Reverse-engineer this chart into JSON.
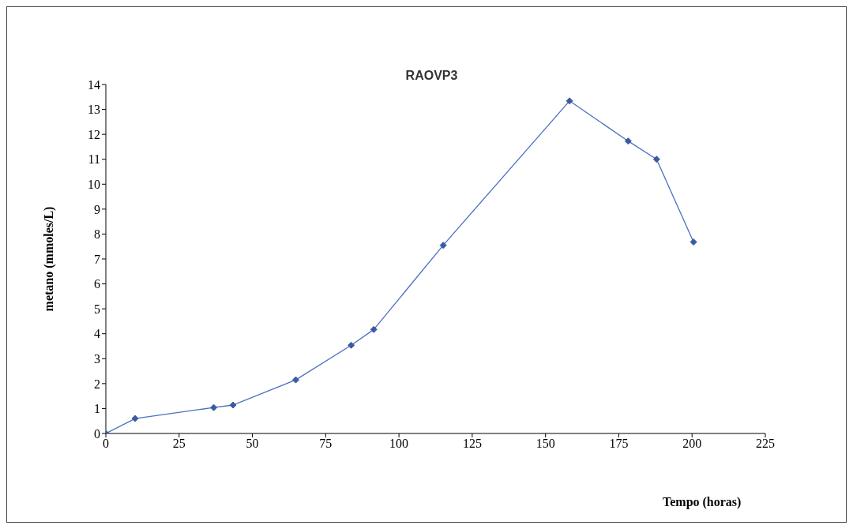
{
  "chart_data": {
    "type": "line",
    "title": "RAOVP3",
    "xlabel": "Tempo (horas)",
    "ylabel": "metano (mmoles/L)",
    "x": [
      0,
      10,
      36.8,
      43.4,
      64.8,
      83.7,
      91.4,
      115.1,
      158.2,
      178.2,
      187.9,
      200.5
    ],
    "series": [
      {
        "color": "#4a6fc0",
        "values": [
          0,
          0.6,
          1.04,
          1.14,
          2.15,
          3.54,
          4.17,
          7.55,
          13.34,
          11.73,
          11.0,
          7.68
        ]
      }
    ],
    "xlim": [
      0,
      225
    ],
    "xticks": [
      0,
      25,
      50,
      75,
      100,
      125,
      150,
      175,
      200,
      225
    ],
    "ylim": [
      0,
      14
    ],
    "yticks": [
      0,
      1,
      2,
      3,
      4,
      5,
      6,
      7,
      8,
      9,
      10,
      11,
      12,
      13,
      14
    ],
    "grid": false,
    "legend": false,
    "marker": "diamond",
    "line_style": "solid"
  }
}
